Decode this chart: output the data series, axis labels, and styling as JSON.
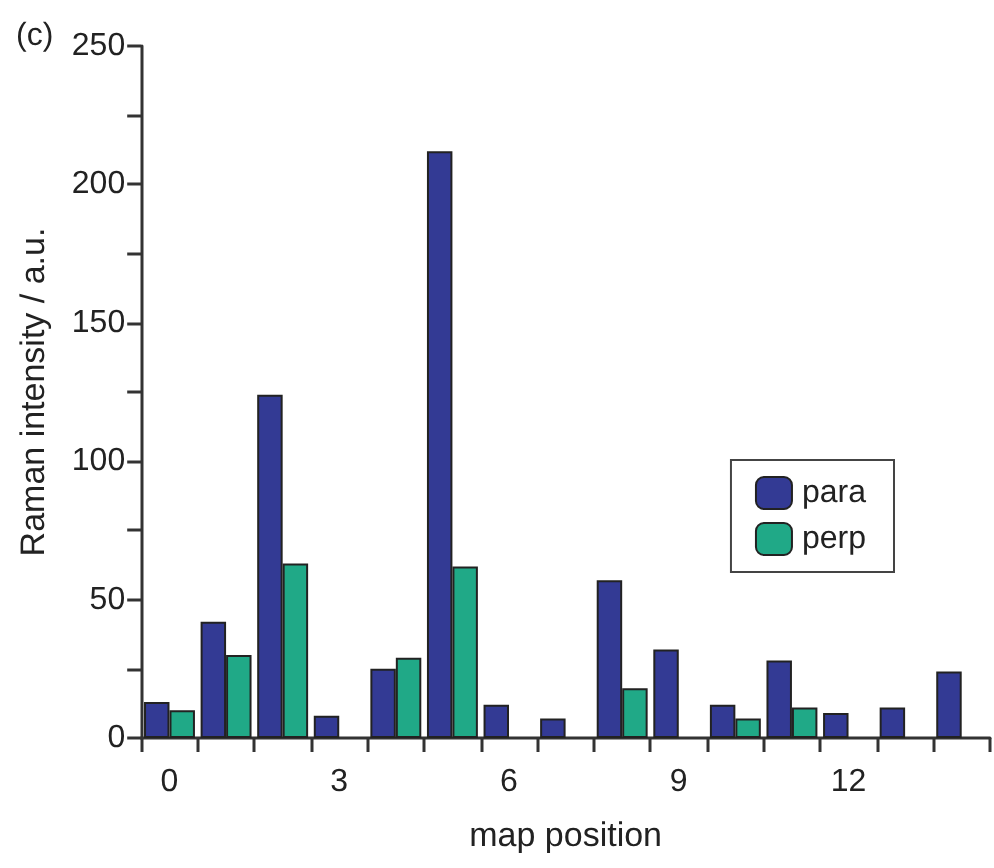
{
  "chart_data": {
    "type": "bar",
    "xlabel": "map position",
    "ylabel": "Raman intensity / a.u.",
    "annotations": [
      "(c)"
    ],
    "categories": [
      "0",
      null,
      null,
      "3",
      null,
      null,
      "6",
      null,
      null,
      "9",
      null,
      null,
      "12",
      null,
      null
    ],
    "series": [
      {
        "name": "para",
        "color": "#333a94",
        "values": [
          13,
          42,
          124,
          8,
          25,
          212,
          12,
          7,
          57,
          32,
          12,
          28,
          9,
          11,
          24
        ]
      },
      {
        "name": "perp",
        "color": "#20a987",
        "values": [
          10,
          30,
          63,
          null,
          29,
          62,
          null,
          null,
          18,
          null,
          7,
          11,
          null,
          null,
          null
        ]
      }
    ],
    "ylim": [
      0,
      250
    ],
    "yticks": [
      0,
      {
        "value": 25,
        "label": null
      },
      50,
      {
        "value": 75,
        "label": null
      },
      100,
      {
        "value": 125,
        "label": null
      },
      150,
      {
        "value": 175,
        "label": null
      },
      200,
      {
        "value": 225,
        "label": null
      },
      250
    ],
    "legend": "right",
    "grid": false
  }
}
